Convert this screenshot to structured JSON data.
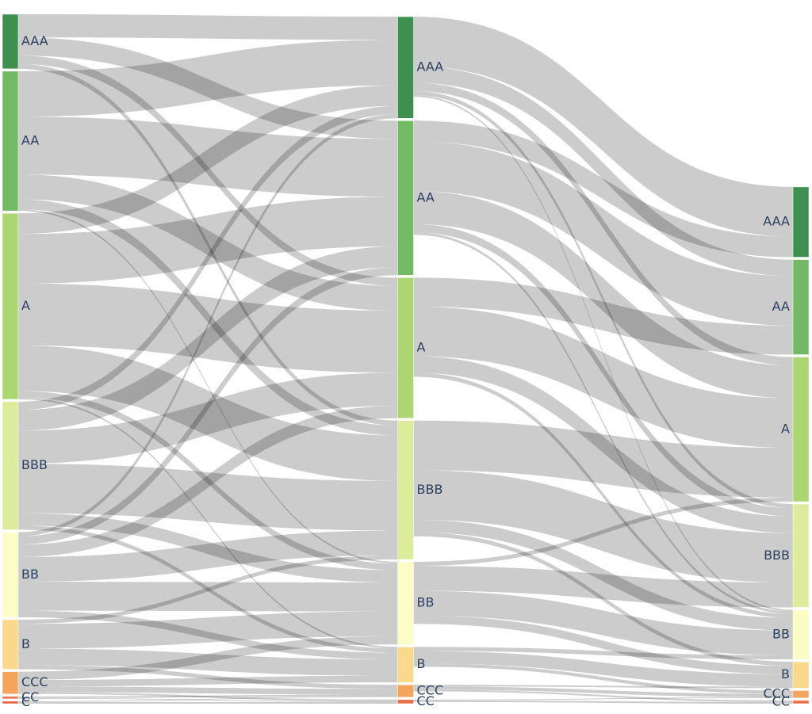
{
  "chart_data": {
    "type": "sankey",
    "nodes": [
      {
        "label": "AAA",
        "color": "#3f8f50"
      },
      {
        "label": "AA",
        "color": "#74b966"
      },
      {
        "label": "A",
        "color": "#abd672"
      },
      {
        "label": "BBB",
        "color": "#dcec9c"
      },
      {
        "label": "BB",
        "color": "#fcfcc6"
      },
      {
        "label": "B",
        "color": "#fbd98c"
      },
      {
        "label": "CCC",
        "color": "#f4a45c"
      },
      {
        "label": "CC",
        "color": "#e8704a"
      },
      {
        "label": "C",
        "color": "#e2603e"
      },
      {
        "label": "AAA",
        "color": "#3f8f50"
      },
      {
        "label": "AA",
        "color": "#74b966"
      },
      {
        "label": "A",
        "color": "#abd672"
      },
      {
        "label": "BBB",
        "color": "#dcec9c"
      },
      {
        "label": "BB",
        "color": "#fcfcc6"
      },
      {
        "label": "B",
        "color": "#fbd98c"
      },
      {
        "label": "CCC",
        "color": "#f4a45c"
      },
      {
        "label": "CC",
        "color": "#e8704a"
      },
      {
        "label": "AAA",
        "color": "#3f8f50"
      },
      {
        "label": "AA",
        "color": "#74b966"
      },
      {
        "label": "A",
        "color": "#abd672"
      },
      {
        "label": "BBB",
        "color": "#dcec9c"
      },
      {
        "label": "BB",
        "color": "#fcfcc6"
      },
      {
        "label": "B",
        "color": "#fbd98c"
      },
      {
        "label": "CCC",
        "color": "#f4a45c"
      },
      {
        "label": "CC",
        "color": "#e8704a"
      }
    ],
    "links": {
      "source": [
        0,
        0,
        0,
        0,
        1,
        1,
        1,
        1,
        1,
        2,
        2,
        2,
        2,
        2,
        2,
        3,
        3,
        3,
        3,
        3,
        3,
        4,
        4,
        4,
        4,
        4,
        4,
        5,
        5,
        5,
        5,
        6,
        6,
        6,
        6,
        7,
        7,
        8,
        8,
        9,
        9,
        9,
        9,
        9,
        10,
        10,
        10,
        10,
        10,
        11,
        11,
        11,
        11,
        12,
        12,
        12,
        12,
        13,
        13,
        13,
        13,
        14,
        14,
        14,
        15,
        15,
        15,
        16,
        16
      ],
      "target": [
        9,
        10,
        11,
        12,
        9,
        10,
        11,
        12,
        13,
        9,
        10,
        11,
        12,
        13,
        14,
        9,
        10,
        11,
        12,
        13,
        14,
        9,
        10,
        11,
        12,
        13,
        14,
        12,
        13,
        14,
        15,
        13,
        14,
        15,
        16,
        15,
        16,
        15,
        16,
        17,
        18,
        19,
        20,
        21,
        17,
        18,
        19,
        20,
        21,
        18,
        19,
        20,
        21,
        19,
        20,
        21,
        22,
        19,
        20,
        21,
        22,
        21,
        22,
        23,
        22,
        23,
        24,
        23,
        24
      ],
      "value": [
        28,
        22,
        10,
        6,
        55,
        70,
        30,
        12,
        2,
        25,
        60,
        75,
        55,
        8,
        2,
        10,
        25,
        40,
        60,
        15,
        5,
        5,
        10,
        15,
        30,
        35,
        8,
        5,
        30,
        20,
        5,
        10,
        8,
        7,
        2,
        2,
        1,
        1,
        2,
        60,
        20,
        10,
        5,
        2,
        25,
        60,
        40,
        10,
        3,
        35,
        60,
        20,
        5,
        60,
        60,
        15,
        5,
        5,
        30,
        30,
        10,
        5,
        15,
        4,
        2,
        4,
        2,
        1,
        2
      ]
    },
    "link_color": "rgba(0,0,0,0.2)"
  }
}
